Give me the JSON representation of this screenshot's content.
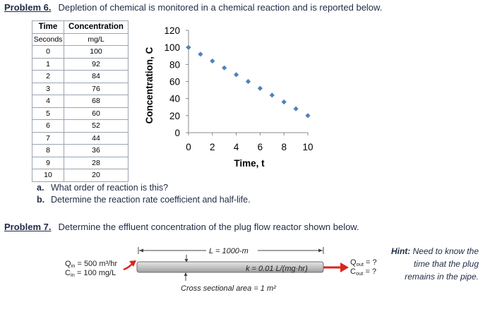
{
  "problem6": {
    "label": "Problem 6.",
    "text": "Depletion of chemical is monitored in a chemical reaction and is reported below.",
    "table": {
      "headers": [
        "Time",
        "Concentration"
      ],
      "units": [
        "Seconds",
        "mg/L"
      ],
      "rows": [
        [
          "0",
          "100"
        ],
        [
          "1",
          "92"
        ],
        [
          "2",
          "84"
        ],
        [
          "3",
          "76"
        ],
        [
          "4",
          "68"
        ],
        [
          "5",
          "60"
        ],
        [
          "6",
          "52"
        ],
        [
          "7",
          "44"
        ],
        [
          "8",
          "36"
        ],
        [
          "9",
          "28"
        ],
        [
          "10",
          "20"
        ]
      ]
    },
    "questions": [
      {
        "label": "a.",
        "text": "What order of reaction is this?"
      },
      {
        "label": "b.",
        "text": "Determine the reaction rate coefficient and half-life."
      }
    ]
  },
  "chart_data": {
    "type": "scatter",
    "x": [
      0,
      1,
      2,
      3,
      4,
      5,
      6,
      7,
      8,
      9,
      10
    ],
    "y": [
      100,
      92,
      84,
      76,
      68,
      60,
      52,
      44,
      36,
      28,
      20
    ],
    "xlabel": "Time, t",
    "ylabel": "Concentration, C",
    "xlim": [
      0,
      10
    ],
    "ylim": [
      0,
      120
    ],
    "xticks": [
      "0",
      "2",
      "4",
      "6",
      "8",
      "10"
    ],
    "yticks": [
      "0",
      "20",
      "40",
      "60",
      "80",
      "100",
      "120"
    ],
    "marker_color": "#4f81bd",
    "grid": false
  },
  "problem7": {
    "label": "Problem 7.",
    "text": "Determine the effluent concentration of the plug flow reactor shown below.",
    "qin": "Q",
    "qin_sub": "in",
    "qin_value": " = 500 m³/hr",
    "cin": "C",
    "cin_sub": "in",
    "cin_value": " = 100 mg/L",
    "length": "L = 1000-m",
    "k": "k = 0.01 L/(mg·hr)",
    "area": "Cross sectional area = 1 m²",
    "qout": "Q",
    "qout_sub": "out",
    "qout_value": " = ?",
    "cout": "C",
    "cout_sub": "out",
    "cout_value": " = ?",
    "hint_label": "Hint:",
    "hint_line1": " Need to know the",
    "hint_line2": "time that the plug",
    "hint_line3": "remains in the pipe."
  },
  "colors": {
    "arrow": "#d9261c",
    "pipe": "#c8c8c8",
    "marker": "#4f81bd"
  }
}
